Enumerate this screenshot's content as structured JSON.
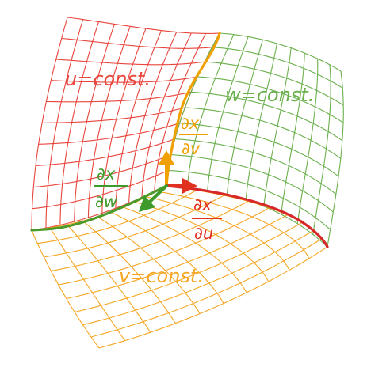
{
  "labels": {
    "u_surface": "u=const.",
    "w_surface": "w=const.",
    "v_surface": "v=const.",
    "dx_dv_num": "∂x",
    "dx_dv_den": "∂v",
    "dx_dw_num": "∂x",
    "dx_dw_den": "∂w",
    "dx_du_num": "∂x",
    "dx_du_den": "∂u"
  },
  "colors": {
    "u_surface": "#e8453c",
    "w_surface": "#6ab04c",
    "v_surface": "#f5a623",
    "curve_v": "#f0a000",
    "curve_u": "#d62828",
    "curve_w": "#4c9a2a",
    "arrow_u": "#e03020",
    "arrow_v": "#f0a000",
    "arrow_w": "#3e9a2a"
  }
}
